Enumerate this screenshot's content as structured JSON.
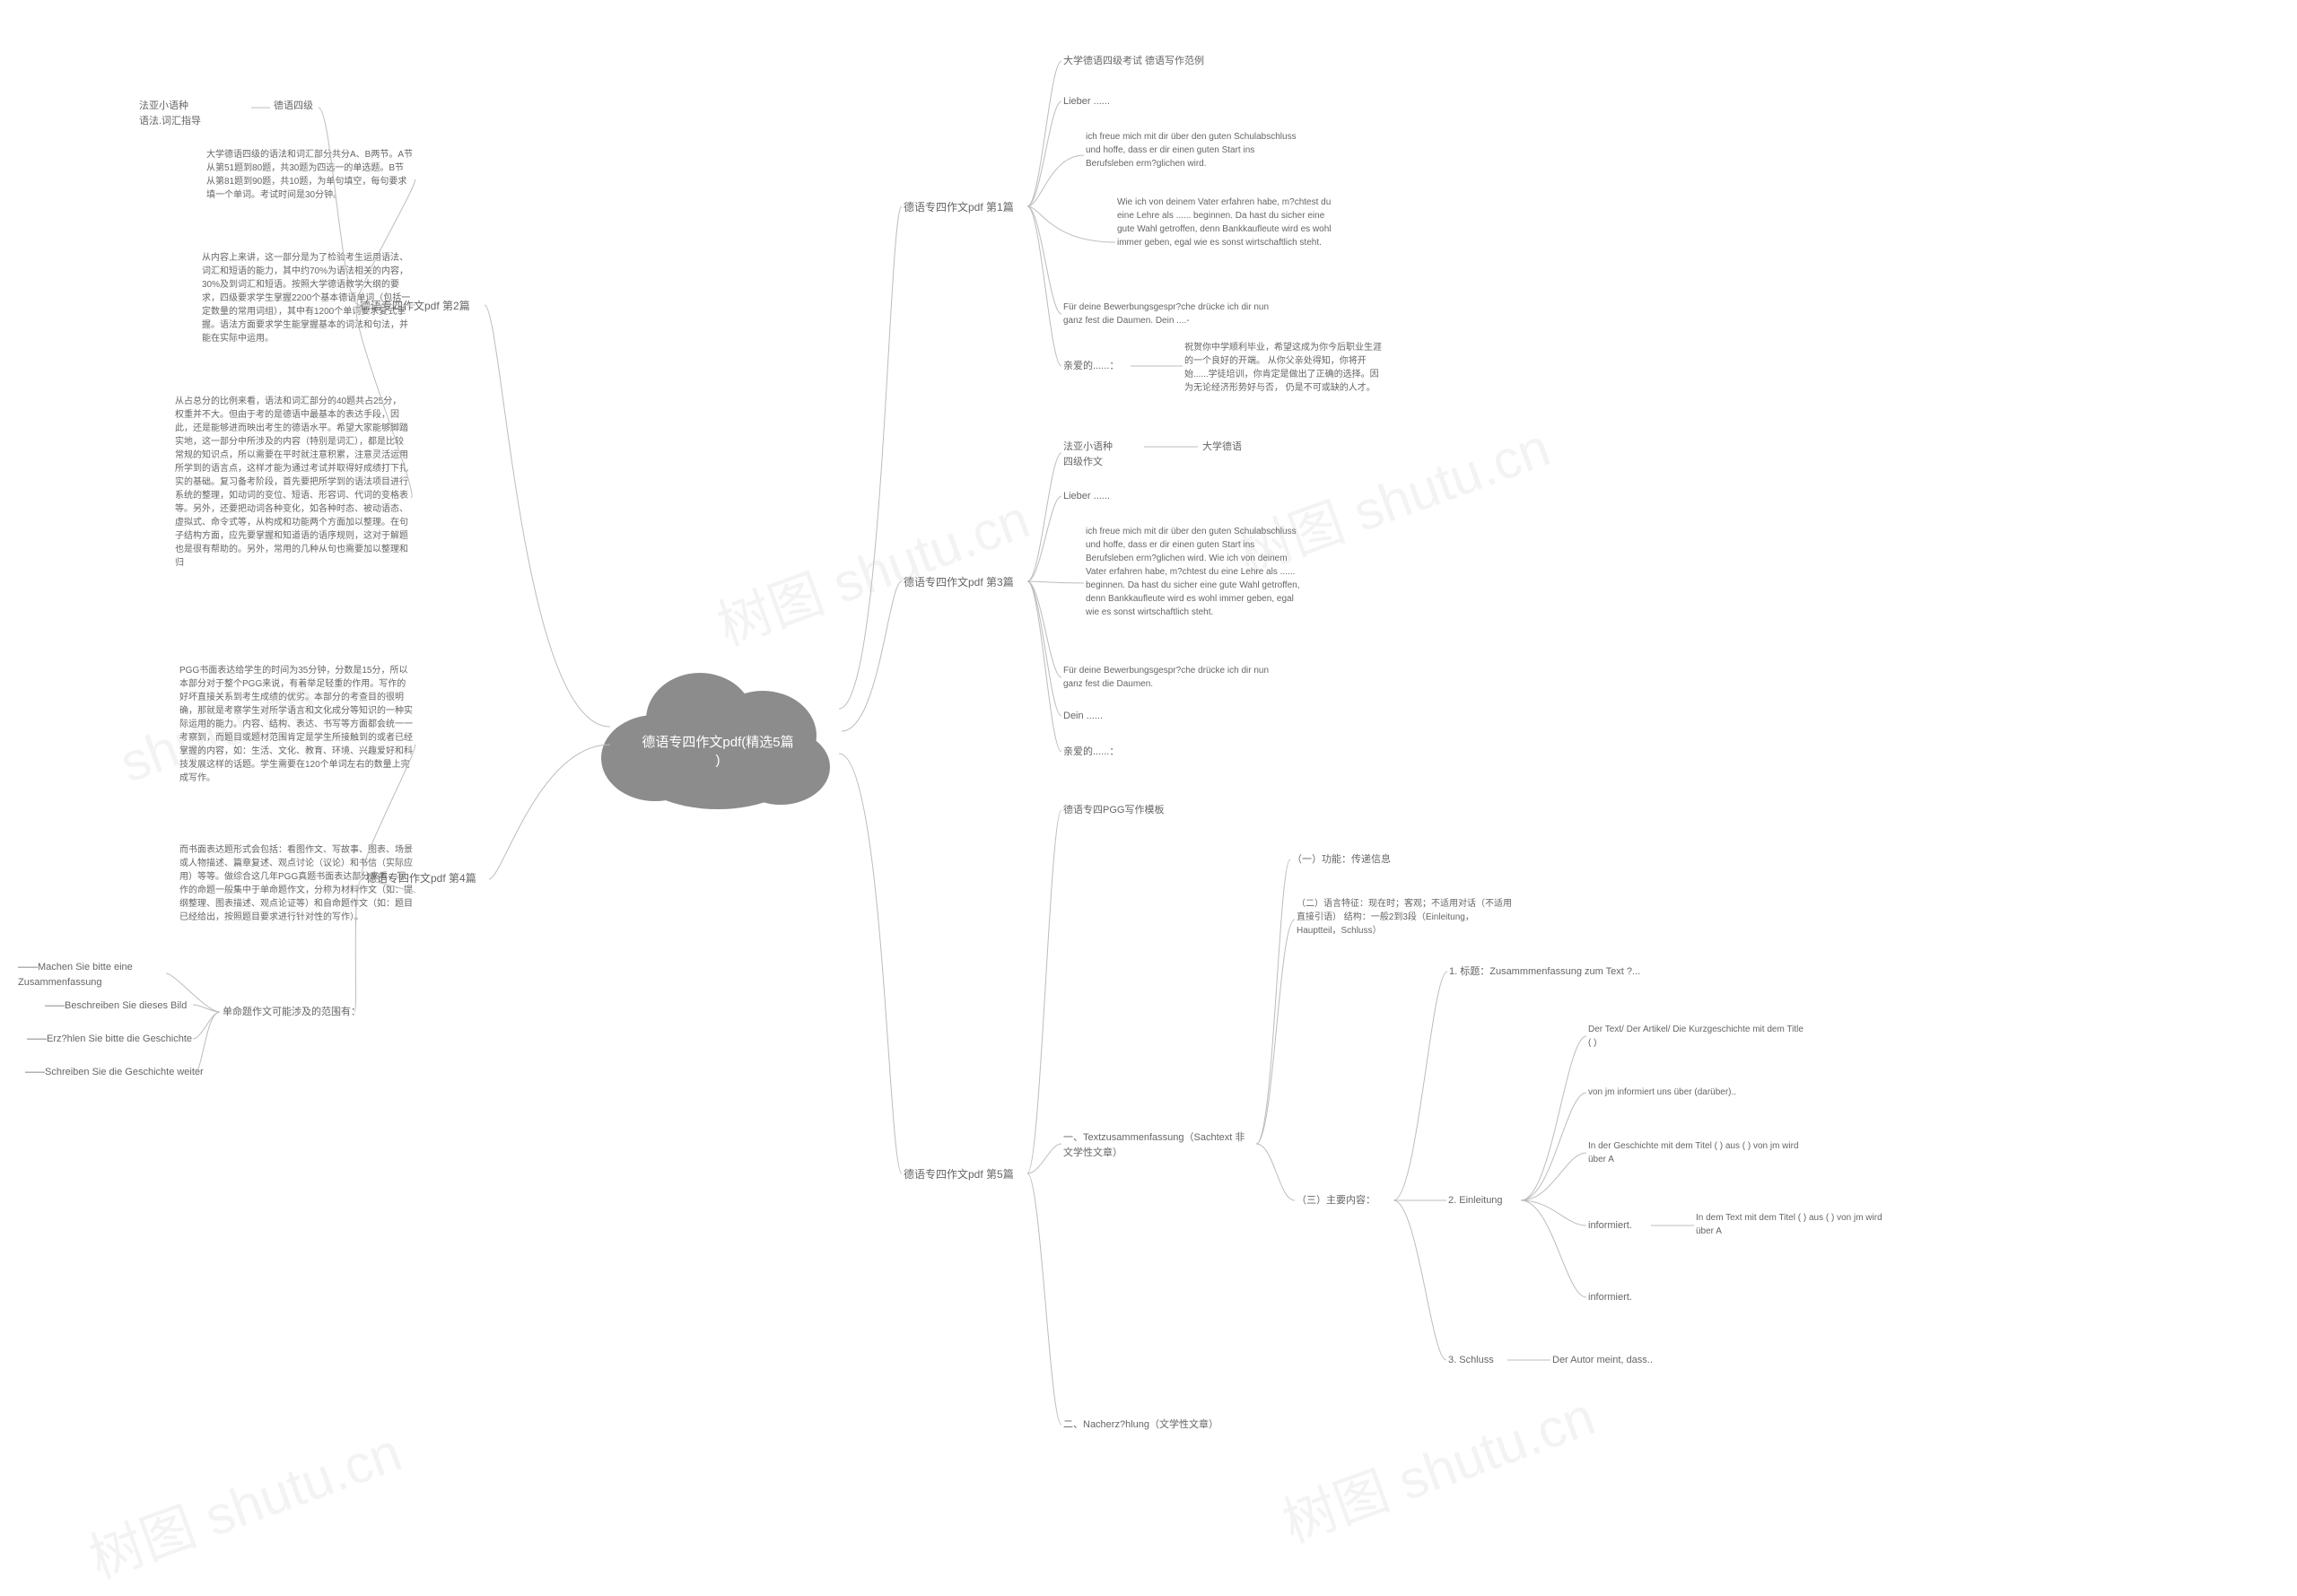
{
  "center": "德语专四作文pdf(精选5篇\n)",
  "watermarks": [
    "shutu.cn",
    "树图 shutu.cn",
    "树图 shutu.cn",
    "树图 shutu.cn",
    "树图 shutu.cn"
  ],
  "L": {
    "b2": {
      "title": "德语专四作文pdf 第2篇",
      "items": [
        {
          "a": "法亚小语种\n语法.词汇指导",
          "b": "德语四级"
        },
        "大学德语四级的语法和词汇部分共分A、B两节。A节从第51题到80题，共30题为四选一的单选题。B节从第81题到90题，共10题，为单句填空，每句要求填一个单词。考试时间是30分钟。",
        "从内容上来讲，这一部分是为了检验考生运用语法、词汇和短语的能力，其中约70%为语法相关的内容，30%及到词汇和短语。按照大学德语教学大纲的要求，四级要求学生掌握2200个基本德语单词（包括一定数量的常用词组），其中有1200个单词要求复式掌握。语法方面要求学生能掌握基本的词法和句法，并能在实际中运用。",
        "从占总分的比例来看，语法和词汇部分的40题共占25分，权重并不大。但由于考的是德语中最基本的表达手段，因此，还是能够进而映出考生的德语水平。希望大家能够脚踏实地，这一部分中所涉及的内容（特别是词汇），都是比较常规的知识点，所以需要在平时就注意积累，注意灵活运用所学到的语言点，这样才能为通过考试并取得好成绩打下扎实的基础。复习备考阶段，首先要把所学到的语法项目进行系统的整理，如动词的变位、短语、形容词、代词的变格表等。另外，还要把动词各种变化，如各种时态、被动语态、虚拟式、命令式等，从构成和功能两个方面加以整理。在句子结构方面，应先要掌握和知道语的语序规则，这对于解题也是很有帮助的。另外，常用的几种从句也需要加以整理和归"
      ]
    },
    "b4": {
      "title": "德语专四作文pdf 第4篇",
      "items": [
        "PGG书面表达给学生的时间为35分钟，分数是15分，所以本部分对于整个PGG来说，有着举足轻重的作用。写作的好坏直接关系到考生成绩的优劣。本部分的考查目的很明确，那就是考察学生对所学语言和文化成分等知识的一种实际运用的能力。内容、结构、表达、书写等方面都会统一一考察到，而题目或题材范围肯定是学生所接触到的或者已经掌握的内容，如：生活、文化、教育、环境、兴趣爱好和科技发展这样的话题。学生需要在120个单词左右的数量上完成写作。",
        "而书面表达题形式会包括：看图作文、写故事、图表、场景或人物描述、篇章复述、观点讨论（议论）和书信（实际应用）等等。做综合这几年PGG真题书面表达部分来看，写作的命题一般集中于单命题作文，分称为材料作文（如：提纲整理、图表描述、观点论证等）和自命题作文（如：题目已经给出，按照题目要求进行针对性的写作）。",
        {
          "label": "单命题作文可能涉及的范围有：",
          "sub": [
            "——Machen Sie bitte eine\nZusammenfassung",
            "——Beschreiben Sie dieses Bild",
            "——Erz?hlen Sie bitte die Geschichte",
            "——Schreiben Sie die Geschichte weiter"
          ]
        }
      ]
    }
  },
  "R": {
    "b1": {
      "title": "德语专四作文pdf 第1篇",
      "items": [
        "大学德语四级考试 德语写作范例",
        "Lieber ......",
        "ich freue mich mit dir über den guten Schulabschluss und hoffe, dass er dir einen guten Start ins Berufsleben erm?glichen wird.",
        "Wie ich von deinem Vater erfahren habe, m?chtest du eine Lehre als ...... beginnen. Da hast du sicher eine gute Wahl getroffen, denn Bankkaufleute wird es wohl immer geben, egal wie es sonst wirtschaftlich steht.",
        "Für deine Bewerbungsgespr?che drücke ich dir nun ganz fest die Daumen. Dein ....-",
        {
          "label": "亲爱的......：",
          "sub": "祝贺你中学顺利毕业，希望这成为你今后职业生涯的一个良好的开端。    从你父亲处得知，你将开始......学徒培训，你肯定是做出了正确的选择。因为无论经济形势好与否，  仍是不可或缺的人才。"
        }
      ]
    },
    "b3": {
      "title": "德语专四作文pdf 第3篇",
      "items": [
        {
          "a": "法亚小语种\n四级作文",
          "b": "大学德语"
        },
        "Lieber ......",
        "ich freue mich mit dir über den guten Schulabschluss und hoffe, dass er dir einen guten Start ins Berufsleben erm?glichen wird.    Wie ich von deinem Vater erfahren habe, m?chtest du eine Lehre als ...... beginnen. Da hast du sicher eine gute Wahl getroffen, denn Bankkaufleute wird es wohl immer geben, egal wie es sonst wirtschaftlich steht.",
        "Für deine Bewerbungsgespr?che drücke ich dir nun ganz fest die Daumen.",
        "Dein ......",
        "亲爱的......："
      ]
    },
    "b5": {
      "title": "德语专四作文pdf 第5篇",
      "items": [
        "德语专四PGG写作模板",
        {
          "label": "一、Textzusammenfassung（Sachtext 非文学性文章）",
          "sub": [
            "（一）功能：传递信息",
            "（二）语言特征：现在时；客观；不适用对话（不适用直接引语）      结构：一般2到3段（Einleitung，Hauptteil，Schluss）",
            {
              "label": "（三）主要内容：",
              "sub": [
                "1. 标题：Zusammmenfassung zum Text ?...",
                {
                  "label": "2. Einleitung",
                  "sub": [
                    "Der Text/ Der Artikel/ Die Kurzgeschichte mit dem Title ( )",
                    "von jm informiert uns über (darüber)..",
                    "In der Geschichte mit dem Titel ( ) aus ( ) von jm wird über A",
                    {
                      "a": "informiert.",
                      "b": "In dem Text mit dem Titel ( ) aus ( ) von jm wird über A"
                    },
                    "informiert."
                  ]
                },
                {
                  "a": "3. Schluss",
                  "b": "Der Autor meint, dass.."
                }
              ]
            }
          ]
        },
        "二、Nacherz?hlung（文学性文章）"
      ]
    }
  },
  "colors": {
    "line": "#bcbcbc",
    "text": "#666",
    "center": "#9e9e9e",
    "centerDark": "#7a7a7a"
  }
}
